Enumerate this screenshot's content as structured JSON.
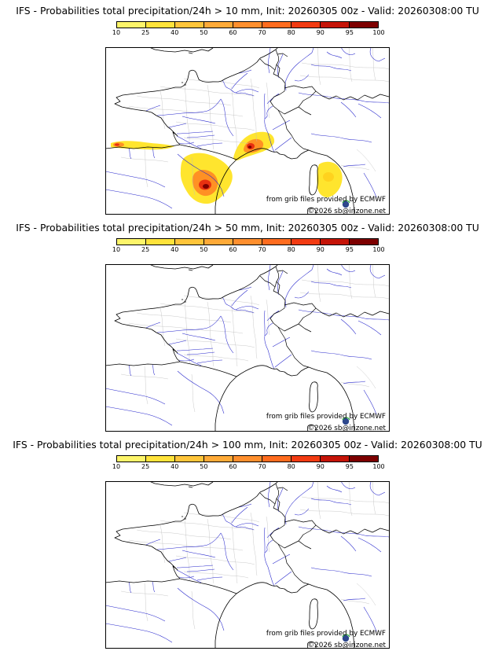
{
  "panels": [
    {
      "id": "gt10mm",
      "title": "IFS - Probabilities total precipitation/24h > 10 mm, Init: 20260305 00z - Valid: 20260308:00 TU",
      "credit_line1": "from grib files provided by ECMWF",
      "credit_line2": "©2026 sb@irizone.net",
      "has_overlay": true
    },
    {
      "id": "gt50mm",
      "title": "IFS - Probabilities total precipitation/24h > 50 mm, Init: 20260305 00z - Valid: 20260308:00 TU",
      "credit_line1": "from grib files provided by ECMWF",
      "credit_line2": "©2026 sb@irizone.net",
      "has_overlay": false
    },
    {
      "id": "gt100mm",
      "title": "IFS - Probabilities total precipitation/24h > 100 mm, Init: 20260305 00z - Valid: 20260308:00 TU",
      "credit_line1": "from grib files provided by ECMWF",
      "credit_line2": "©2026 sb@irizone.net",
      "has_overlay": false
    }
  ],
  "colorbar": {
    "ticks": [
      "10",
      "25",
      "40",
      "50",
      "60",
      "70",
      "80",
      "90",
      "95",
      "100"
    ],
    "colors": [
      "#fdf56a",
      "#ffe33b",
      "#ffc53a",
      "#ffaa38",
      "#ff8f2e",
      "#ff6c1f",
      "#f23b12",
      "#c51408",
      "#7d0000"
    ]
  },
  "overlay_colors": {
    "yellow": "#ffe52e",
    "yellow_deep": "#ffd21e",
    "orange": "#ff9124",
    "red": "#e83010",
    "dark_red": "#7d0000"
  },
  "overlay_areas": [
    {
      "panel": "gt10mm",
      "location": "northern Spain coastal band",
      "max_intensity": "red"
    },
    {
      "panel": "gt10mm",
      "location": "eastern Pyrenees / Catalonia",
      "max_intensity": "dark_red"
    },
    {
      "panel": "gt10mm",
      "location": "Cevennes / Languedoc",
      "max_intensity": "dark_red"
    },
    {
      "panel": "gt10mm",
      "location": "Mediterranean sea near Corsica",
      "max_intensity": "yellow_deep"
    }
  ]
}
